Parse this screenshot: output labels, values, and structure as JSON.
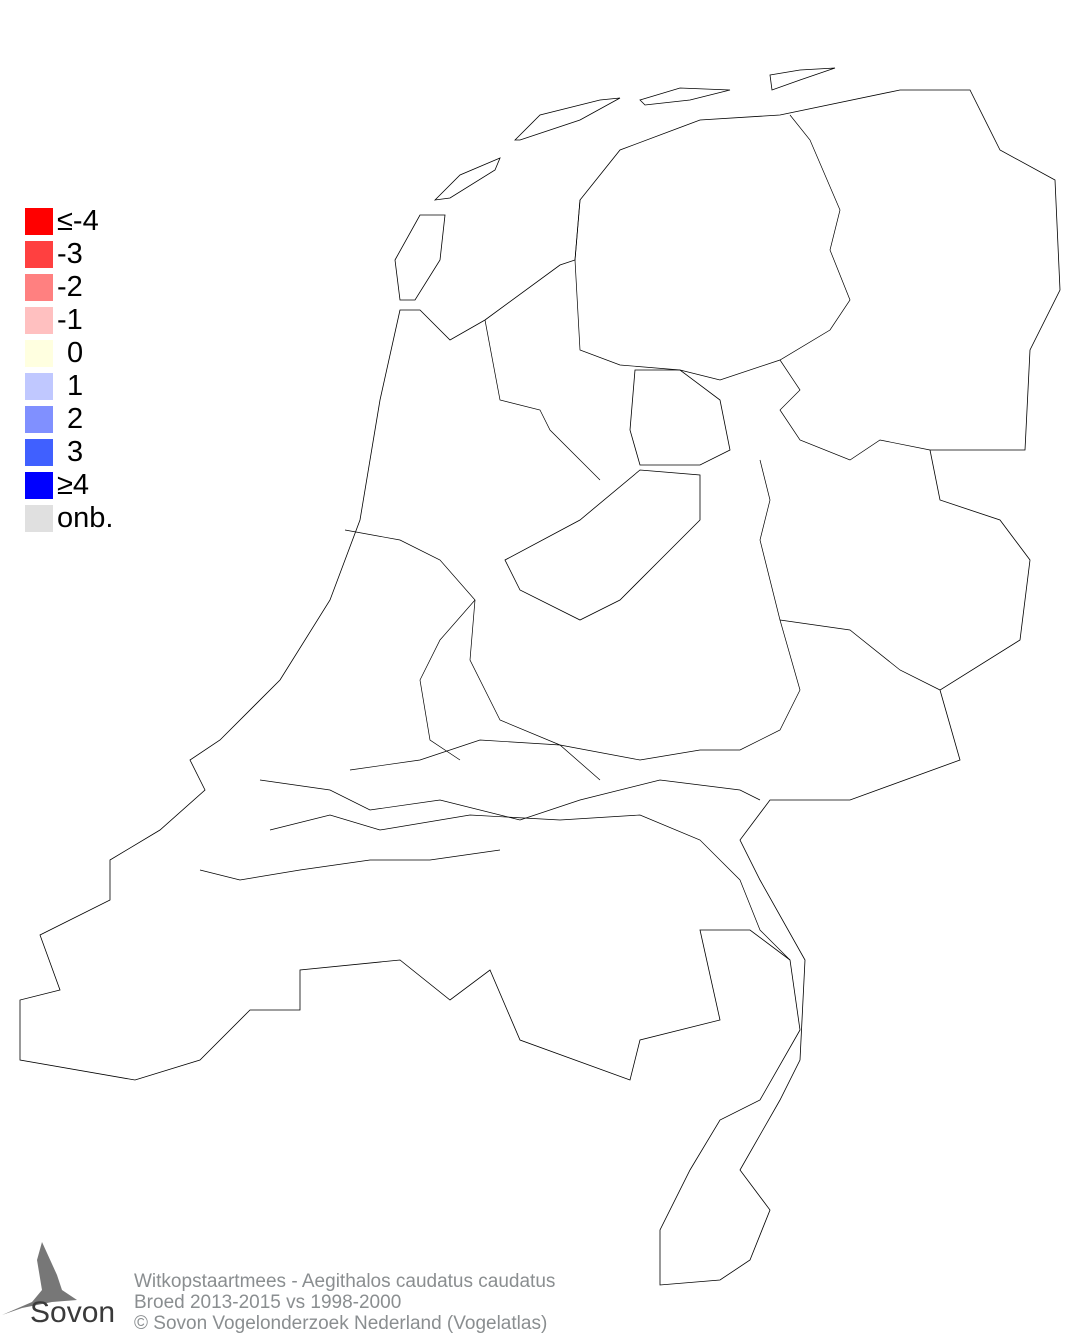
{
  "legend": {
    "items": [
      {
        "label": "≤-4",
        "color": "#ff0000"
      },
      {
        "label": "-3",
        "color": "#ff4040"
      },
      {
        "label": "-2",
        "color": "#ff8080"
      },
      {
        "label": "-1",
        "color": "#ffc0c0"
      },
      {
        "label": "0",
        "color": "#ffffe0"
      },
      {
        "label": "1",
        "color": "#c0c8ff"
      },
      {
        "label": "2",
        "color": "#8090ff"
      },
      {
        "label": "3",
        "color": "#4060ff"
      },
      {
        "label": "≥4",
        "color": "#0000ff"
      },
      {
        "label": "onb.",
        "color": "#e0e0e0"
      }
    ]
  },
  "map": {
    "region_fill": "#ffffff",
    "border_color": "#000000"
  },
  "footer": {
    "species": "Witkopstaartmees - Aegithalos caudatus caudatus",
    "period": "Broed 2013-2015 vs 1998-2000",
    "copyright": "© Sovon Vogelonderzoek Nederland (Vogelatlas)"
  },
  "logo": {
    "text": "Sovon",
    "icon": "swallow-icon"
  }
}
